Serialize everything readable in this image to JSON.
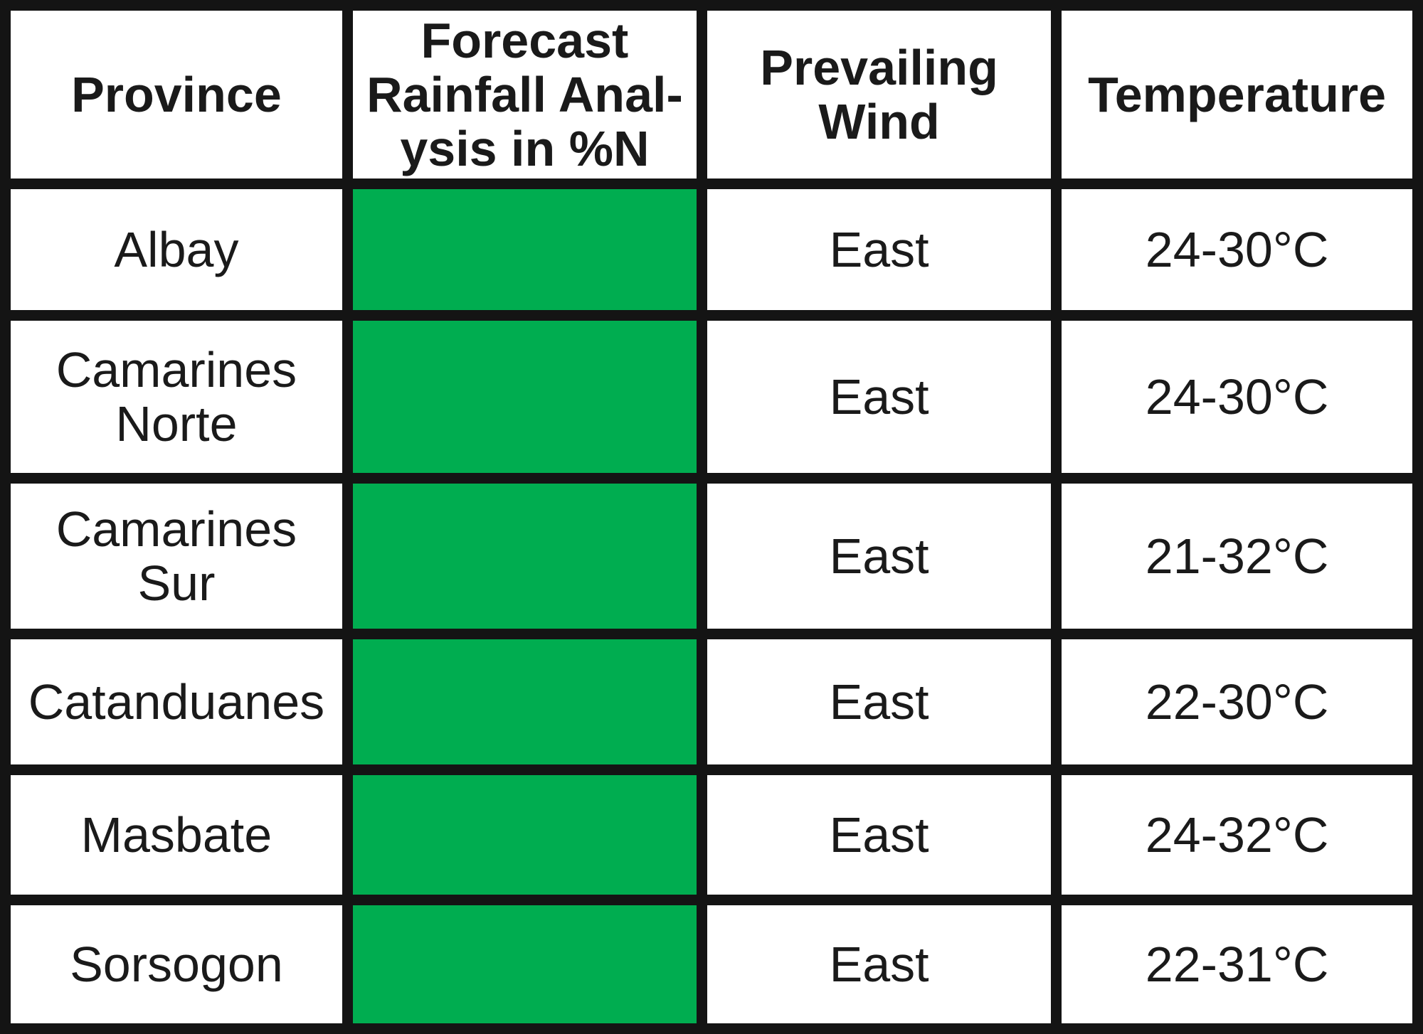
{
  "table": {
    "headers": {
      "province": "Province",
      "rainfall": [
        "Forecast",
        "Rainfall Anal-",
        "ysis in %N"
      ],
      "wind": [
        "Prevailing",
        "Wind"
      ],
      "temperature": "Temperature"
    },
    "rainfall_cell_color": "#00ad50",
    "border_color": "#141414",
    "rows": [
      {
        "province": [
          "Albay"
        ],
        "wind": "East",
        "temperature": "24-30°C"
      },
      {
        "province": [
          "Camarines",
          "Norte"
        ],
        "wind": "East",
        "temperature": "24-30°C"
      },
      {
        "province": [
          "Camarines",
          "Sur"
        ],
        "wind": "East",
        "temperature": "21-32°C"
      },
      {
        "province": [
          "Catanduanes"
        ],
        "wind": "East",
        "temperature": "22-30°C"
      },
      {
        "province": [
          "Masbate"
        ],
        "wind": "East",
        "temperature": "24-32°C"
      },
      {
        "province": [
          "Sorsogon"
        ],
        "wind": "East",
        "temperature": "22-31°C"
      }
    ]
  }
}
